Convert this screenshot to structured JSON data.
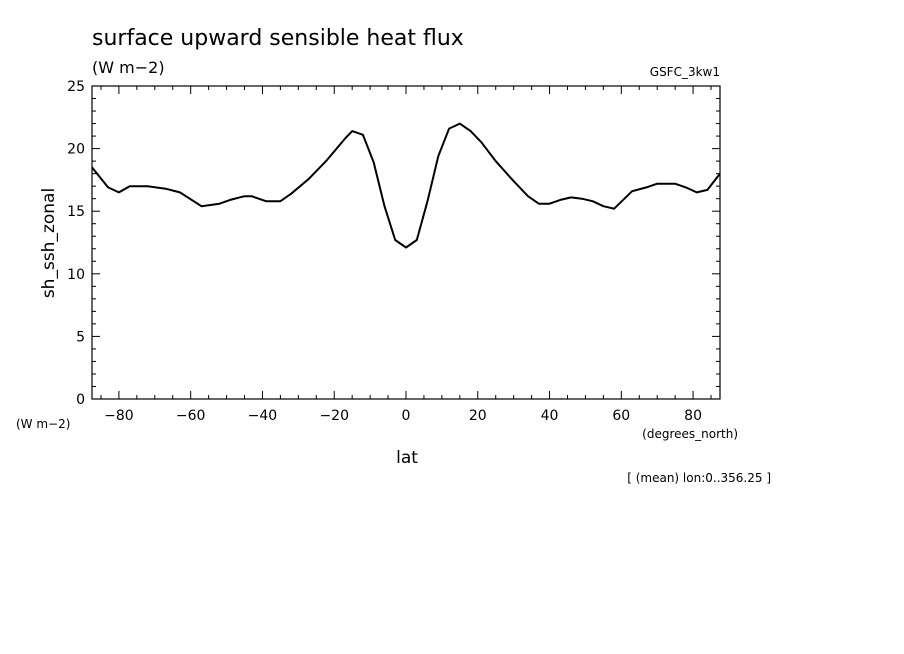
{
  "chart_data": {
    "type": "line",
    "title": "surface upward sensible heat flux",
    "units": "(W m−2)",
    "dataset_label": "GSFC_3kw1",
    "ylabel": "sh_ssh_zonal",
    "y_units": "(W m−2)",
    "xlabel": "lat",
    "x_units": "(degrees_north)",
    "footnote": "[ (mean) lon:0..356.25 ]",
    "xlim": [
      -87.5,
      87.5
    ],
    "ylim": [
      0,
      25
    ],
    "x_ticks": [
      -80,
      -60,
      -40,
      -20,
      0,
      20,
      40,
      60,
      80
    ],
    "x_tick_labels": [
      "−80",
      "−60",
      "−40",
      "−20",
      "0",
      "20",
      "40",
      "60",
      "80"
    ],
    "y_ticks": [
      0,
      5,
      10,
      15,
      20,
      25
    ],
    "y_tick_labels": [
      "0",
      "5",
      "10",
      "15",
      "20",
      "25"
    ],
    "grid": false,
    "series": [
      {
        "x": [
          -87.5,
          -83,
          -80,
          -77,
          -72,
          -67,
          -63,
          -57,
          -52,
          -49,
          -45,
          -43,
          -39,
          -35,
          -32,
          -27,
          -22,
          -17,
          -15,
          -12,
          -9,
          -6,
          -3,
          0,
          3,
          6,
          9,
          12,
          15,
          18,
          21,
          25,
          30,
          34,
          37,
          40,
          43,
          46,
          49,
          52,
          55,
          58,
          63,
          67,
          70,
          75,
          78,
          81,
          84,
          87.5
        ],
        "y": [
          18.5,
          16.9,
          16.5,
          17.0,
          17.0,
          16.8,
          16.5,
          15.4,
          15.6,
          15.9,
          16.2,
          16.2,
          15.8,
          15.8,
          16.4,
          17.6,
          19.1,
          20.8,
          21.4,
          21.1,
          18.9,
          15.4,
          12.7,
          12.1,
          12.7,
          15.8,
          19.4,
          21.6,
          22.0,
          21.4,
          20.5,
          19.0,
          17.4,
          16.2,
          15.6,
          15.6,
          15.9,
          16.1,
          16.0,
          15.8,
          15.4,
          15.2,
          16.6,
          16.9,
          17.2,
          17.2,
          16.9,
          16.5,
          16.7,
          18.0
        ]
      }
    ]
  }
}
